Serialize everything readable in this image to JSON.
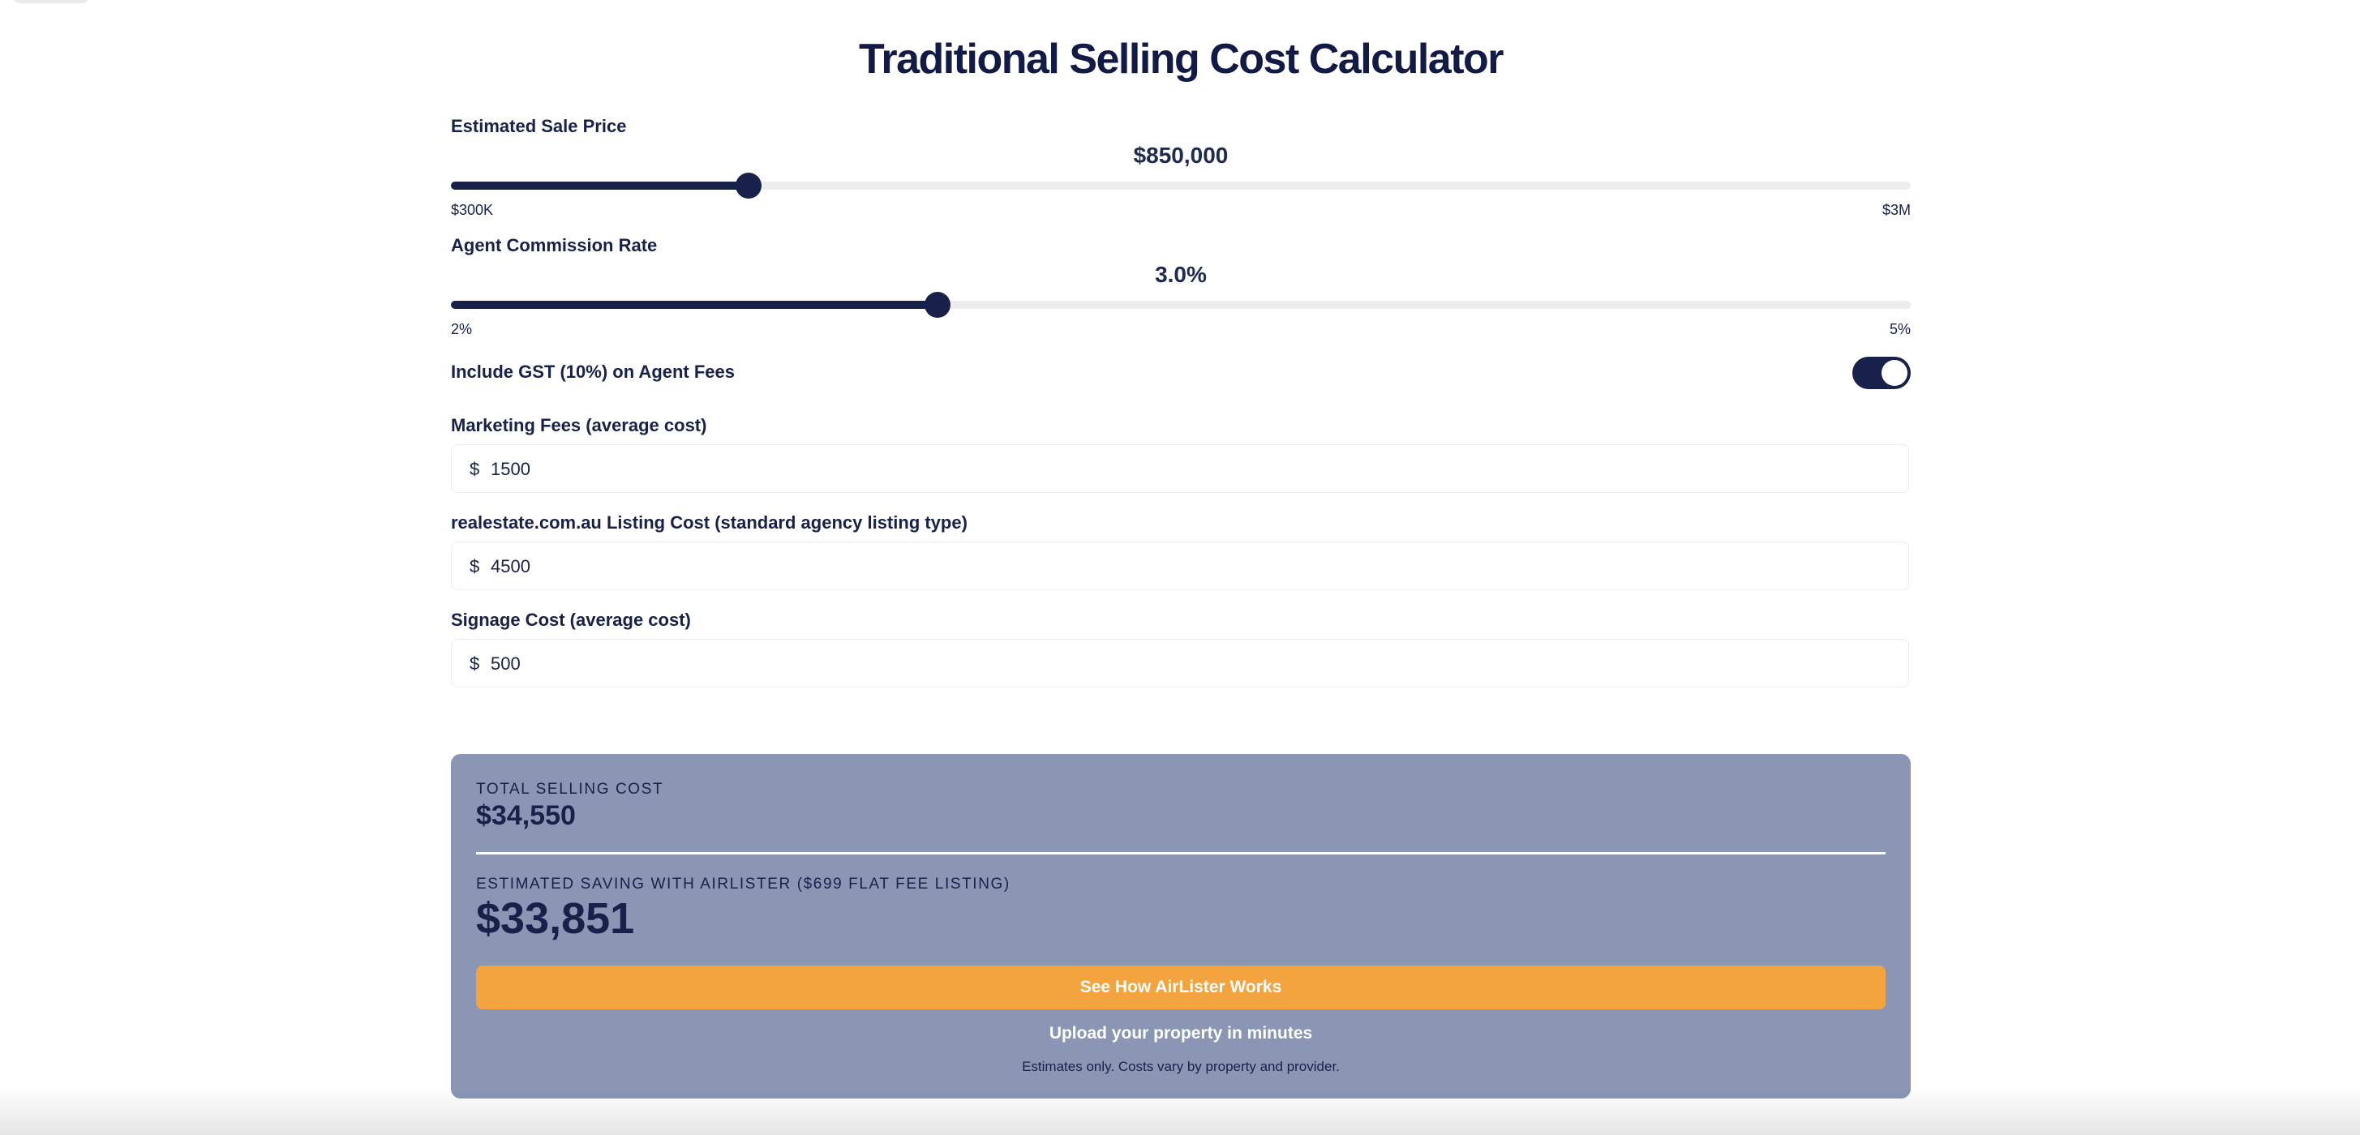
{
  "title": "Traditional Selling Cost Calculator",
  "sale_price": {
    "label": "Estimated Sale Price",
    "display": "$850,000",
    "min_label": "$300K",
    "max_label": "$3M",
    "min": 300000,
    "max": 3000000,
    "value": 850000
  },
  "commission": {
    "label": "Agent Commission Rate",
    "display": "3.0%",
    "min_label": "2%",
    "max_label": "5%",
    "min": 2,
    "max": 5,
    "value": 3.0
  },
  "gst": {
    "label": "Include GST (10%) on Agent Fees",
    "enabled": true
  },
  "marketing": {
    "label": "Marketing Fees (average cost)",
    "currency": "$",
    "value": "1500"
  },
  "listing": {
    "label": "realestate.com.au Listing Cost (standard agency listing type)",
    "currency": "$",
    "value": "4500"
  },
  "signage": {
    "label": "Signage Cost (average cost)",
    "currency": "$",
    "value": "500"
  },
  "results": {
    "total_label": "TOTAL SELLING COST",
    "total_value": "$34,550",
    "saving_label": "ESTIMATED SAVING WITH AIRLISTER ($699 FLAT FEE LISTING)",
    "saving_value": "$33,851",
    "cta_label": "See How AirLister Works",
    "upload_text": "Upload your property in minutes",
    "disclaimer": "Estimates only. Costs vary by property and provider."
  },
  "colors": {
    "navy": "#17214a",
    "track": "#ededed",
    "results_bg": "#8b96b5",
    "cta": "#f4a43f"
  }
}
